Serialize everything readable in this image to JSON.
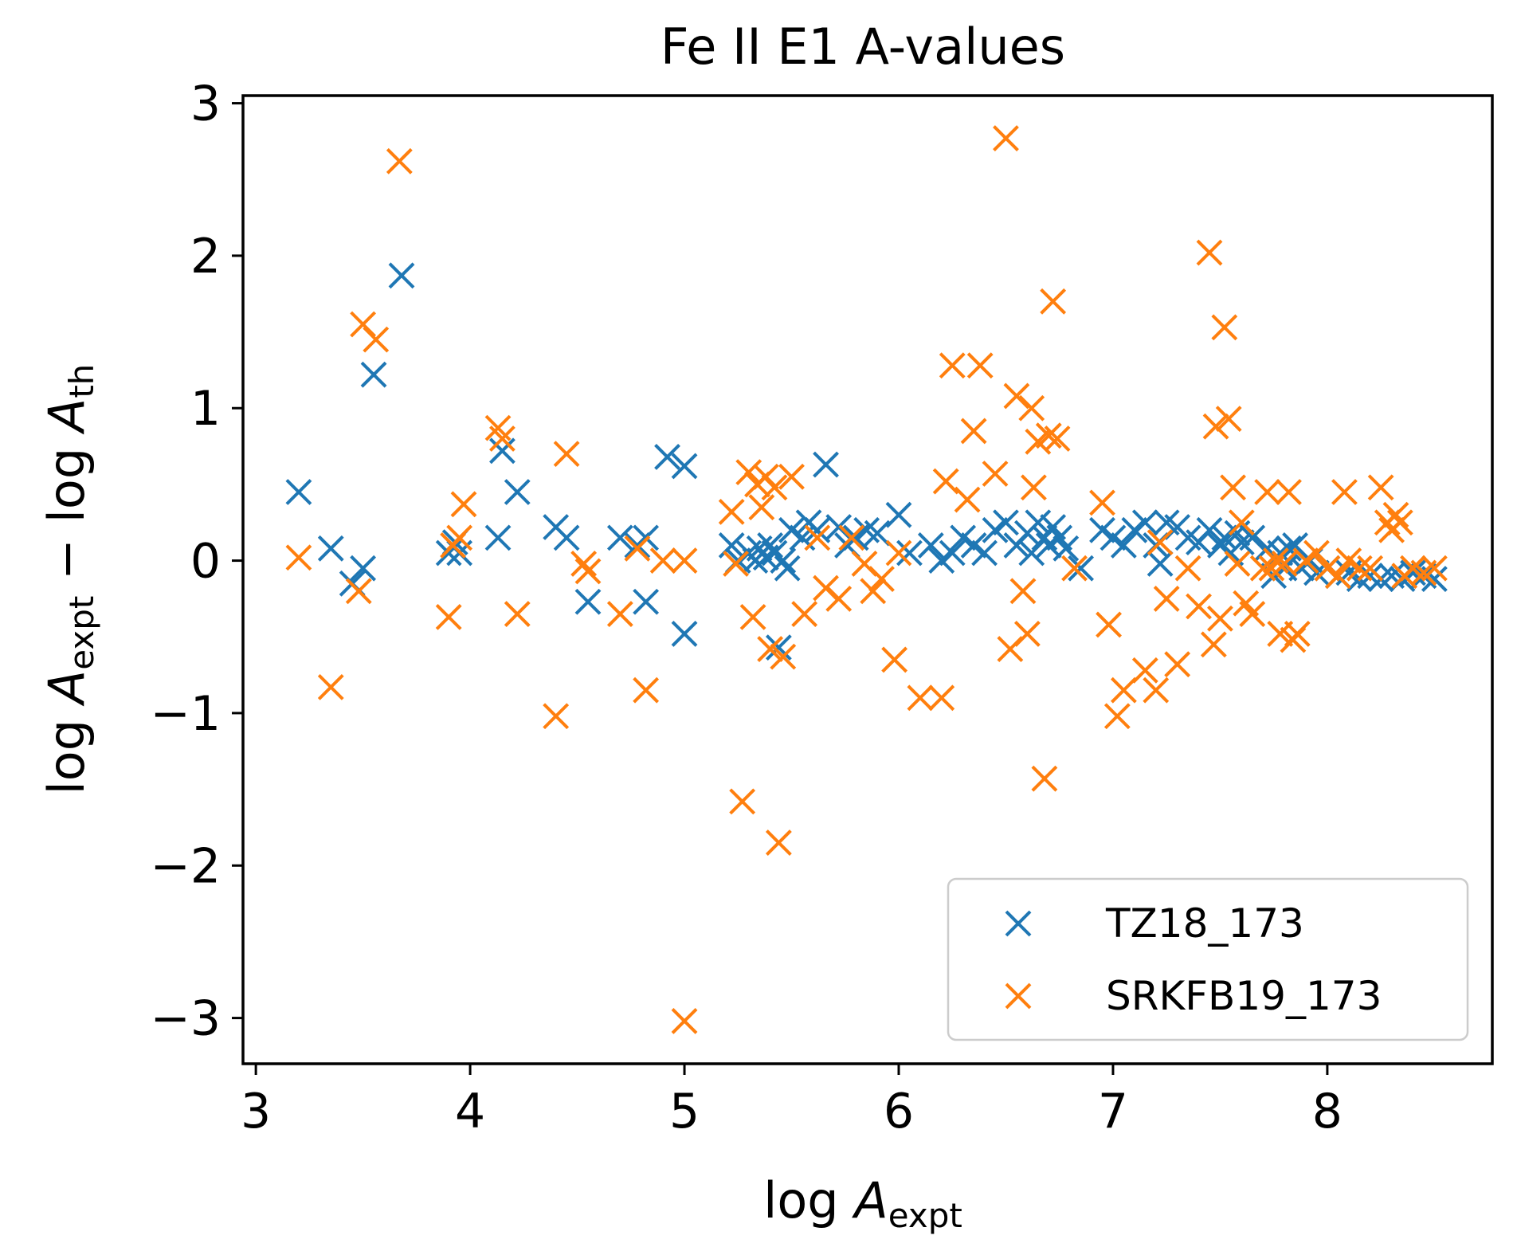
{
  "chart_data": {
    "type": "scatter",
    "title": "Fe II E1 A-values",
    "xlabel": {
      "prefix": "log ",
      "var": "A",
      "sub": "expt"
    },
    "ylabel": {
      "prefix": "log ",
      "var": "A",
      "sub": "expt",
      "minus": " − log ",
      "var2": "A",
      "sub2": "th"
    },
    "xlim": [
      2.94,
      8.77
    ],
    "ylim": [
      -3.3,
      3.05
    ],
    "xticks": [
      3,
      4,
      5,
      6,
      7,
      8
    ],
    "yticks": [
      3,
      2,
      1,
      0,
      -1,
      -2,
      -3
    ],
    "xtick_labels": [
      "3",
      "4",
      "5",
      "6",
      "7",
      "8"
    ],
    "ytick_labels": [
      "3",
      "2",
      "1",
      "0",
      "−1",
      "−2",
      "−3"
    ],
    "grid": false,
    "legend_position": "lower-right",
    "series": [
      {
        "name": "TZ18_173",
        "color": "#1f77b4",
        "marker": "x",
        "points": [
          [
            3.2,
            0.45
          ],
          [
            3.35,
            0.08
          ],
          [
            3.45,
            -0.15
          ],
          [
            3.5,
            -0.05
          ],
          [
            3.55,
            1.22
          ],
          [
            3.68,
            1.87
          ],
          [
            3.9,
            0.05
          ],
          [
            3.93,
            0.12
          ],
          [
            3.95,
            0.05
          ],
          [
            4.13,
            0.15
          ],
          [
            4.15,
            0.72
          ],
          [
            4.22,
            0.45
          ],
          [
            4.4,
            0.22
          ],
          [
            4.45,
            0.15
          ],
          [
            4.55,
            -0.27
          ],
          [
            4.7,
            0.15
          ],
          [
            4.78,
            0.1
          ],
          [
            4.82,
            0.15
          ],
          [
            4.82,
            -0.27
          ],
          [
            4.92,
            0.68
          ],
          [
            5.0,
            0.62
          ],
          [
            5.0,
            -0.48
          ],
          [
            5.22,
            0.1
          ],
          [
            5.25,
            0.0
          ],
          [
            5.3,
            0.05
          ],
          [
            5.33,
            0.0
          ],
          [
            5.35,
            0.08
          ],
          [
            5.38,
            0.02
          ],
          [
            5.4,
            0.1
          ],
          [
            5.42,
            0.05
          ],
          [
            5.44,
            -0.57
          ],
          [
            5.46,
            0.0
          ],
          [
            5.48,
            -0.05
          ],
          [
            5.5,
            0.2
          ],
          [
            5.55,
            0.15
          ],
          [
            5.58,
            0.25
          ],
          [
            5.62,
            0.2
          ],
          [
            5.66,
            0.63
          ],
          [
            5.72,
            0.22
          ],
          [
            5.76,
            0.1
          ],
          [
            5.8,
            0.15
          ],
          [
            5.85,
            0.2
          ],
          [
            5.9,
            0.18
          ],
          [
            6.0,
            0.3
          ],
          [
            6.05,
            0.05
          ],
          [
            6.15,
            0.1
          ],
          [
            6.2,
            0.0
          ],
          [
            6.25,
            0.05
          ],
          [
            6.3,
            0.15
          ],
          [
            6.35,
            0.1
          ],
          [
            6.4,
            0.05
          ],
          [
            6.45,
            0.2
          ],
          [
            6.5,
            0.25
          ],
          [
            6.55,
            0.1
          ],
          [
            6.6,
            0.18
          ],
          [
            6.62,
            0.05
          ],
          [
            6.65,
            0.25
          ],
          [
            6.68,
            0.15
          ],
          [
            6.7,
            0.1
          ],
          [
            6.72,
            0.22
          ],
          [
            6.75,
            0.15
          ],
          [
            6.78,
            0.08
          ],
          [
            6.85,
            -0.05
          ],
          [
            6.95,
            0.2
          ],
          [
            7.0,
            0.15
          ],
          [
            7.05,
            0.1
          ],
          [
            7.1,
            0.2
          ],
          [
            7.15,
            0.25
          ],
          [
            7.2,
            0.1
          ],
          [
            7.22,
            -0.02
          ],
          [
            7.25,
            0.25
          ],
          [
            7.3,
            0.22
          ],
          [
            7.35,
            0.15
          ],
          [
            7.4,
            0.12
          ],
          [
            7.45,
            0.2
          ],
          [
            7.5,
            0.1
          ],
          [
            7.52,
            0.15
          ],
          [
            7.55,
            0.05
          ],
          [
            7.58,
            0.18
          ],
          [
            7.6,
            0.12
          ],
          [
            7.65,
            0.15
          ],
          [
            7.72,
            0.08
          ],
          [
            7.75,
            -0.1
          ],
          [
            7.78,
            0.05
          ],
          [
            7.8,
            -0.05
          ],
          [
            7.82,
            0.08
          ],
          [
            7.85,
            0.1
          ],
          [
            7.88,
            -0.05
          ],
          [
            7.92,
            0.0
          ],
          [
            7.95,
            -0.08
          ],
          [
            8.0,
            -0.05
          ],
          [
            8.05,
            -0.1
          ],
          [
            8.1,
            -0.08
          ],
          [
            8.15,
            -0.12
          ],
          [
            8.2,
            -0.1
          ],
          [
            8.25,
            -0.12
          ],
          [
            8.3,
            -0.1
          ],
          [
            8.35,
            -0.12
          ],
          [
            8.4,
            -0.08
          ],
          [
            8.45,
            -0.1
          ],
          [
            8.5,
            -0.12
          ]
        ]
      },
      {
        "name": "SRKFB19_173",
        "color": "#ff7f0e",
        "marker": "x",
        "points": [
          [
            3.2,
            0.02
          ],
          [
            3.35,
            -0.83
          ],
          [
            3.48,
            -0.2
          ],
          [
            3.5,
            1.55
          ],
          [
            3.56,
            1.45
          ],
          [
            3.67,
            2.62
          ],
          [
            3.9,
            -0.37
          ],
          [
            3.92,
            0.1
          ],
          [
            3.95,
            0.15
          ],
          [
            3.97,
            0.37
          ],
          [
            4.13,
            0.87
          ],
          [
            4.15,
            0.8
          ],
          [
            4.22,
            -0.35
          ],
          [
            4.4,
            -1.02
          ],
          [
            4.45,
            0.7
          ],
          [
            4.53,
            -0.02
          ],
          [
            4.55,
            -0.07
          ],
          [
            4.7,
            -0.35
          ],
          [
            4.78,
            0.08
          ],
          [
            4.82,
            -0.85
          ],
          [
            4.9,
            0.0
          ],
          [
            5.0,
            0.0
          ],
          [
            5.0,
            -3.02
          ],
          [
            5.22,
            0.32
          ],
          [
            5.24,
            -0.02
          ],
          [
            5.27,
            -1.58
          ],
          [
            5.3,
            0.58
          ],
          [
            5.32,
            -0.37
          ],
          [
            5.34,
            0.5
          ],
          [
            5.36,
            0.35
          ],
          [
            5.38,
            0.55
          ],
          [
            5.4,
            -0.58
          ],
          [
            5.42,
            0.48
          ],
          [
            5.44,
            -1.85
          ],
          [
            5.46,
            -0.63
          ],
          [
            5.5,
            0.55
          ],
          [
            5.56,
            -0.35
          ],
          [
            5.62,
            0.15
          ],
          [
            5.66,
            -0.18
          ],
          [
            5.72,
            -0.25
          ],
          [
            5.78,
            0.15
          ],
          [
            5.84,
            -0.02
          ],
          [
            5.88,
            -0.2
          ],
          [
            5.92,
            -0.12
          ],
          [
            5.98,
            -0.65
          ],
          [
            6.0,
            0.05
          ],
          [
            6.1,
            -0.9
          ],
          [
            6.2,
            -0.9
          ],
          [
            6.22,
            0.52
          ],
          [
            6.25,
            1.28
          ],
          [
            6.32,
            0.4
          ],
          [
            6.35,
            0.85
          ],
          [
            6.38,
            1.28
          ],
          [
            6.45,
            0.57
          ],
          [
            6.52,
            -0.58
          ],
          [
            6.55,
            1.08
          ],
          [
            6.58,
            -0.2
          ],
          [
            6.6,
            -0.48
          ],
          [
            6.62,
            1.0
          ],
          [
            6.63,
            0.48
          ],
          [
            6.65,
            0.78
          ],
          [
            6.68,
            -1.43
          ],
          [
            6.7,
            0.82
          ],
          [
            6.72,
            1.7
          ],
          [
            6.74,
            0.8
          ],
          [
            6.5,
            2.77
          ],
          [
            6.82,
            -0.05
          ],
          [
            6.95,
            0.38
          ],
          [
            6.98,
            -0.42
          ],
          [
            7.02,
            -1.02
          ],
          [
            7.05,
            -0.85
          ],
          [
            7.15,
            -0.72
          ],
          [
            7.2,
            -0.85
          ],
          [
            7.22,
            0.12
          ],
          [
            7.25,
            -0.25
          ],
          [
            7.3,
            -0.68
          ],
          [
            7.35,
            -0.05
          ],
          [
            7.4,
            -0.3
          ],
          [
            7.45,
            2.02
          ],
          [
            7.47,
            -0.55
          ],
          [
            7.48,
            0.88
          ],
          [
            7.5,
            -0.38
          ],
          [
            7.52,
            1.53
          ],
          [
            7.54,
            0.93
          ],
          [
            7.56,
            0.48
          ],
          [
            7.58,
            -0.02
          ],
          [
            7.6,
            0.25
          ],
          [
            7.62,
            -0.28
          ],
          [
            7.65,
            -0.35
          ],
          [
            7.7,
            -0.05
          ],
          [
            7.72,
            0.45
          ],
          [
            7.74,
            -0.05
          ],
          [
            7.76,
            0.0
          ],
          [
            7.78,
            -0.48
          ],
          [
            7.8,
            -0.02
          ],
          [
            7.82,
            0.45
          ],
          [
            7.84,
            -0.52
          ],
          [
            7.86,
            -0.48
          ],
          [
            7.9,
            0.0
          ],
          [
            7.95,
            0.05
          ],
          [
            8.0,
            -0.05
          ],
          [
            8.05,
            -0.1
          ],
          [
            8.08,
            0.45
          ],
          [
            8.1,
            0.0
          ],
          [
            8.15,
            -0.05
          ],
          [
            8.2,
            -0.05
          ],
          [
            8.25,
            0.48
          ],
          [
            8.28,
            0.25
          ],
          [
            8.3,
            0.2
          ],
          [
            8.32,
            0.3
          ],
          [
            8.34,
            0.25
          ],
          [
            8.36,
            -0.1
          ],
          [
            8.4,
            -0.05
          ],
          [
            8.45,
            -0.08
          ],
          [
            8.5,
            -0.05
          ]
        ]
      }
    ]
  }
}
